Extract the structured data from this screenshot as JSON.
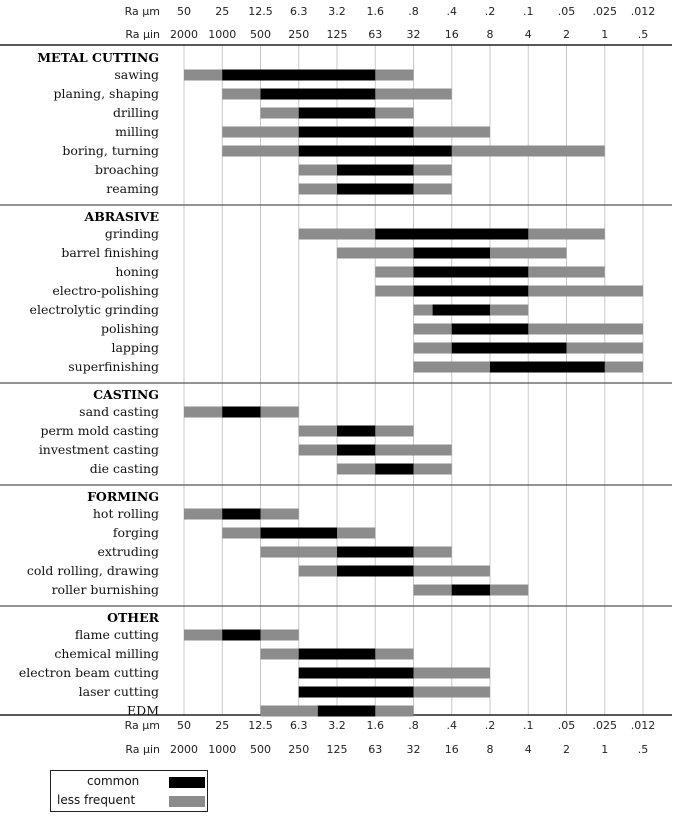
{
  "chart_data": {
    "type": "gantt-range",
    "axis_rows": [
      {
        "label": "Ra µm",
        "ticks": [
          "50",
          "25",
          "12.5",
          "6.3",
          "3.2",
          "1.6",
          ".8",
          ".4",
          ".2",
          ".1",
          ".05",
          ".025",
          ".012"
        ]
      },
      {
        "label": "Ra µin",
        "ticks": [
          "2000",
          "1000",
          "500",
          "250",
          "125",
          "63",
          "32",
          "16",
          "8",
          "4",
          "2",
          "1",
          ".5"
        ]
      }
    ],
    "legend": [
      {
        "key": "common",
        "label": "common",
        "color": "#000000"
      },
      {
        "key": "less",
        "label": "less frequent",
        "color": "#8c8c8c"
      }
    ],
    "groups": [
      {
        "name": "METAL CUTTING",
        "processes": [
          {
            "name": "sawing",
            "less": [
              0,
              6
            ],
            "common": [
              1,
              5
            ]
          },
          {
            "name": "planing, shaping",
            "less": [
              1,
              7
            ],
            "common": [
              2,
              5
            ]
          },
          {
            "name": "drilling",
            "less": [
              2,
              6
            ],
            "common": [
              3,
              5
            ]
          },
          {
            "name": "milling",
            "less": [
              1,
              8
            ],
            "common": [
              3,
              6
            ]
          },
          {
            "name": "boring, turning",
            "less": [
              1,
              11
            ],
            "common": [
              3,
              7
            ]
          },
          {
            "name": "broaching",
            "less": [
              3,
              7
            ],
            "common": [
              4,
              6
            ]
          },
          {
            "name": "reaming",
            "less": [
              3,
              7
            ],
            "common": [
              4,
              6
            ]
          }
        ]
      },
      {
        "name": "ABRASIVE",
        "processes": [
          {
            "name": "grinding",
            "less": [
              3,
              11
            ],
            "common": [
              5,
              9
            ]
          },
          {
            "name": "barrel finishing",
            "less": [
              4,
              10
            ],
            "common": [
              6,
              8
            ]
          },
          {
            "name": "honing",
            "less": [
              5,
              11
            ],
            "common": [
              6,
              9
            ]
          },
          {
            "name": "electro-polishing",
            "less": [
              5,
              12
            ],
            "common": [
              6,
              9
            ]
          },
          {
            "name": "electrolytic grinding",
            "less": [
              6,
              9
            ],
            "common": [
              6.5,
              8
            ]
          },
          {
            "name": "polishing",
            "less": [
              6,
              12
            ],
            "common": [
              7,
              9
            ]
          },
          {
            "name": "lapping",
            "less": [
              6,
              12
            ],
            "common": [
              7,
              10
            ]
          },
          {
            "name": "superfinishing",
            "less": [
              6,
              12
            ],
            "common": [
              8,
              11
            ]
          }
        ]
      },
      {
        "name": "CASTING",
        "processes": [
          {
            "name": "sand casting",
            "less": [
              0,
              3
            ],
            "common": [
              1,
              2
            ]
          },
          {
            "name": "perm mold casting",
            "less": [
              3,
              6
            ],
            "common": [
              4,
              5
            ]
          },
          {
            "name": "investment casting",
            "less": [
              3,
              7
            ],
            "common": [
              4,
              5
            ]
          },
          {
            "name": "die casting",
            "less": [
              4,
              7
            ],
            "common": [
              5,
              6
            ]
          }
        ]
      },
      {
        "name": "FORMING",
        "processes": [
          {
            "name": "hot rolling",
            "less": [
              0,
              3
            ],
            "common": [
              1,
              2
            ]
          },
          {
            "name": "forging",
            "less": [
              1,
              5
            ],
            "common": [
              2,
              4
            ]
          },
          {
            "name": "extruding",
            "less": [
              2,
              7
            ],
            "common": [
              4,
              6
            ]
          },
          {
            "name": "cold rolling, drawing",
            "less": [
              3,
              8
            ],
            "common": [
              4,
              6
            ]
          },
          {
            "name": "roller burnishing",
            "less": [
              6,
              9
            ],
            "common": [
              7,
              8
            ]
          }
        ]
      },
      {
        "name": "OTHER",
        "processes": [
          {
            "name": "flame cutting",
            "less": [
              0,
              3
            ],
            "common": [
              1,
              2
            ]
          },
          {
            "name": "chemical milling",
            "less": [
              2,
              6
            ],
            "common": [
              3,
              5
            ]
          },
          {
            "name": "electron beam cutting",
            "less": [
              3,
              8
            ],
            "common": [
              3,
              6
            ]
          },
          {
            "name": "laser cutting",
            "less": [
              3,
              8
            ],
            "common": [
              3,
              6
            ]
          },
          {
            "name": "EDM",
            "less": [
              2,
              6
            ],
            "common": [
              3.5,
              5
            ]
          }
        ]
      }
    ]
  }
}
